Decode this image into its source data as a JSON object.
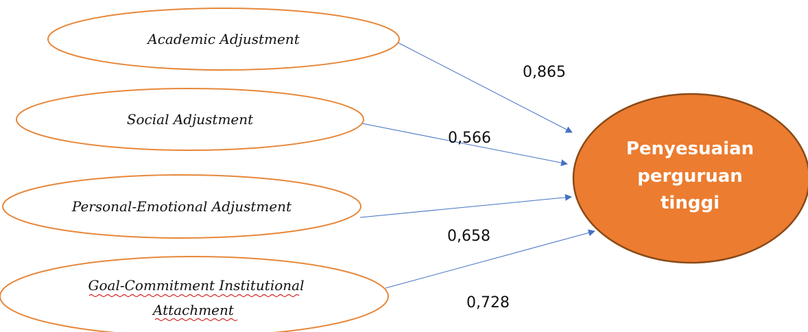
{
  "colors": {
    "ellipse_stroke": "#e6873a",
    "outcome_fill": "#ec7c30",
    "outcome_stroke": "#8a4a18",
    "arrow": "#4472c4",
    "spellcheck_underline": "#d42020"
  },
  "factors": [
    {
      "lines": [
        "Academic Adjustment"
      ],
      "weight": "0,865"
    },
    {
      "lines": [
        "Social Adjustment"
      ],
      "weight": "0,566"
    },
    {
      "lines": [
        "Personal-Emotional Adjustment"
      ],
      "weight": "0,658"
    },
    {
      "lines": [
        "Goal-Commitment Institutional",
        "Attachment"
      ],
      "weight": "0,728"
    }
  ],
  "outcome": {
    "lines": [
      "Penyesuaian",
      "perguruan",
      "tinggi"
    ]
  }
}
